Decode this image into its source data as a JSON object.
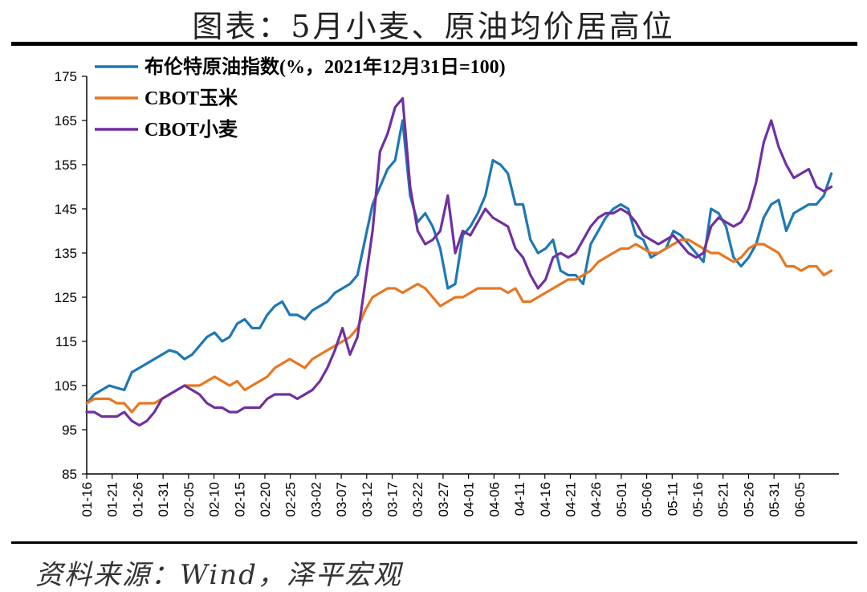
{
  "title": "图表：5月小麦、原油均价居高位",
  "source": "资料来源：Wind，泽平宏观",
  "chart_data": {
    "type": "line",
    "ylim": [
      85,
      175
    ],
    "yticks": [
      "175",
      "165",
      "155",
      "145",
      "135",
      "125",
      "115",
      "105",
      "95",
      "85"
    ],
    "xticks": [
      "01-16",
      "01-21",
      "01-26",
      "01-31",
      "02-05",
      "02-10",
      "02-15",
      "02-20",
      "02-25",
      "03-02",
      "03-07",
      "03-12",
      "03-17",
      "03-22",
      "03-27",
      "04-01",
      "04-06",
      "04-11",
      "04-16",
      "04-21",
      "04-26",
      "05-01",
      "05-06",
      "05-11",
      "05-16",
      "05-21",
      "05-26",
      "05-31",
      "06-05"
    ],
    "legend_position": "top-left",
    "series": [
      {
        "name": "布伦特原油指数(%，2021年12月31日=100)",
        "color": "#1f77b4",
        "points": [
          [
            0,
            101
          ],
          [
            1,
            103
          ],
          [
            2,
            104
          ],
          [
            3,
            105
          ],
          [
            4,
            104.5
          ],
          [
            5,
            104
          ],
          [
            6,
            108
          ],
          [
            7,
            109
          ],
          [
            8,
            110
          ],
          [
            9,
            111
          ],
          [
            10,
            112
          ],
          [
            11,
            113
          ],
          [
            12,
            112.5
          ],
          [
            13,
            111
          ],
          [
            14,
            112
          ],
          [
            15,
            114
          ],
          [
            16,
            116
          ],
          [
            17,
            117
          ],
          [
            18,
            115
          ],
          [
            19,
            116
          ],
          [
            20,
            119
          ],
          [
            21,
            120
          ],
          [
            22,
            118
          ],
          [
            23,
            118
          ],
          [
            24,
            121
          ],
          [
            25,
            123
          ],
          [
            26,
            124
          ],
          [
            27,
            121
          ],
          [
            28,
            121
          ],
          [
            29,
            120
          ],
          [
            30,
            122
          ],
          [
            31,
            123
          ],
          [
            32,
            124
          ],
          [
            33,
            126
          ],
          [
            34,
            127
          ],
          [
            35,
            128
          ],
          [
            36,
            130
          ],
          [
            37,
            138
          ],
          [
            38,
            146
          ],
          [
            39,
            150
          ],
          [
            40,
            154
          ],
          [
            41,
            156
          ],
          [
            42,
            165
          ],
          [
            43,
            148
          ],
          [
            44,
            142
          ],
          [
            45,
            144
          ],
          [
            46,
            141
          ],
          [
            47,
            136
          ],
          [
            48,
            127
          ],
          [
            49,
            128
          ],
          [
            50,
            139
          ],
          [
            51,
            141
          ],
          [
            52,
            144
          ],
          [
            53,
            148
          ],
          [
            54,
            156
          ],
          [
            55,
            155
          ],
          [
            56,
            153
          ],
          [
            57,
            146
          ],
          [
            58,
            146
          ],
          [
            59,
            138
          ],
          [
            60,
            135
          ],
          [
            61,
            136
          ],
          [
            62,
            138
          ],
          [
            63,
            131
          ],
          [
            64,
            130
          ],
          [
            65,
            130
          ],
          [
            66,
            128
          ],
          [
            67,
            137
          ],
          [
            68,
            140
          ],
          [
            69,
            143
          ],
          [
            70,
            145
          ],
          [
            71,
            146
          ],
          [
            72,
            145
          ],
          [
            73,
            139
          ],
          [
            74,
            138
          ],
          [
            75,
            134
          ],
          [
            76,
            135
          ],
          [
            77,
            136
          ],
          [
            78,
            140
          ],
          [
            79,
            139
          ],
          [
            80,
            137
          ],
          [
            81,
            135
          ],
          [
            82,
            133
          ],
          [
            83,
            145
          ],
          [
            84,
            144
          ],
          [
            85,
            141
          ],
          [
            86,
            134
          ],
          [
            87,
            132
          ],
          [
            88,
            134
          ],
          [
            89,
            137
          ],
          [
            90,
            143
          ],
          [
            91,
            146
          ],
          [
            92,
            147
          ],
          [
            93,
            140
          ],
          [
            94,
            144
          ],
          [
            95,
            145
          ],
          [
            96,
            146
          ],
          [
            97,
            146
          ],
          [
            98,
            148
          ],
          [
            99,
            153
          ]
        ]
      },
      {
        "name": "CBOT玉米",
        "color": "#e87722",
        "points": [
          [
            0,
            101
          ],
          [
            1,
            102
          ],
          [
            2,
            102
          ],
          [
            3,
            102
          ],
          [
            4,
            101
          ],
          [
            5,
            101
          ],
          [
            6,
            99
          ],
          [
            7,
            101
          ],
          [
            8,
            101
          ],
          [
            9,
            101
          ],
          [
            10,
            102
          ],
          [
            11,
            103
          ],
          [
            12,
            104
          ],
          [
            13,
            105
          ],
          [
            14,
            105
          ],
          [
            15,
            105
          ],
          [
            16,
            106
          ],
          [
            17,
            107
          ],
          [
            18,
            106
          ],
          [
            19,
            105
          ],
          [
            20,
            106
          ],
          [
            21,
            104
          ],
          [
            22,
            105
          ],
          [
            23,
            106
          ],
          [
            24,
            107
          ],
          [
            25,
            109
          ],
          [
            26,
            110
          ],
          [
            27,
            111
          ],
          [
            28,
            110
          ],
          [
            29,
            109
          ],
          [
            30,
            111
          ],
          [
            31,
            112
          ],
          [
            32,
            113
          ],
          [
            33,
            114
          ],
          [
            34,
            115
          ],
          [
            35,
            116
          ],
          [
            36,
            118
          ],
          [
            37,
            122
          ],
          [
            38,
            125
          ],
          [
            39,
            126
          ],
          [
            40,
            127
          ],
          [
            41,
            127
          ],
          [
            42,
            126
          ],
          [
            43,
            127
          ],
          [
            44,
            128
          ],
          [
            45,
            127
          ],
          [
            46,
            125
          ],
          [
            47,
            123
          ],
          [
            48,
            124
          ],
          [
            49,
            125
          ],
          [
            50,
            125
          ],
          [
            51,
            126
          ],
          [
            52,
            127
          ],
          [
            53,
            127
          ],
          [
            54,
            127
          ],
          [
            55,
            127
          ],
          [
            56,
            126
          ],
          [
            57,
            127
          ],
          [
            58,
            124
          ],
          [
            59,
            124
          ],
          [
            60,
            125
          ],
          [
            61,
            126
          ],
          [
            62,
            127
          ],
          [
            63,
            128
          ],
          [
            64,
            129
          ],
          [
            65,
            129
          ],
          [
            66,
            130
          ],
          [
            67,
            131
          ],
          [
            68,
            133
          ],
          [
            69,
            134
          ],
          [
            70,
            135
          ],
          [
            71,
            136
          ],
          [
            72,
            136
          ],
          [
            73,
            137
          ],
          [
            74,
            136
          ],
          [
            75,
            135
          ],
          [
            76,
            135
          ],
          [
            77,
            136
          ],
          [
            78,
            137
          ],
          [
            79,
            138
          ],
          [
            80,
            138
          ],
          [
            81,
            137
          ],
          [
            82,
            136
          ],
          [
            83,
            135
          ],
          [
            84,
            135
          ],
          [
            85,
            134
          ],
          [
            86,
            133
          ],
          [
            87,
            134
          ],
          [
            88,
            136
          ],
          [
            89,
            137
          ],
          [
            90,
            137
          ],
          [
            91,
            136
          ],
          [
            92,
            135
          ],
          [
            93,
            132
          ],
          [
            94,
            132
          ],
          [
            95,
            131
          ],
          [
            96,
            132
          ],
          [
            97,
            132
          ],
          [
            98,
            130
          ],
          [
            99,
            131
          ]
        ]
      },
      {
        "name": "CBOT小麦",
        "color": "#7030a0",
        "points": [
          [
            0,
            99
          ],
          [
            1,
            99
          ],
          [
            2,
            98
          ],
          [
            3,
            98
          ],
          [
            4,
            98
          ],
          [
            5,
            99
          ],
          [
            6,
            97
          ],
          [
            7,
            96
          ],
          [
            8,
            97
          ],
          [
            9,
            99
          ],
          [
            10,
            102
          ],
          [
            11,
            103
          ],
          [
            12,
            104
          ],
          [
            13,
            105
          ],
          [
            14,
            104
          ],
          [
            15,
            103
          ],
          [
            16,
            101
          ],
          [
            17,
            100
          ],
          [
            18,
            100
          ],
          [
            19,
            99
          ],
          [
            20,
            99
          ],
          [
            21,
            100
          ],
          [
            22,
            100
          ],
          [
            23,
            100
          ],
          [
            24,
            102
          ],
          [
            25,
            103
          ],
          [
            26,
            103
          ],
          [
            27,
            103
          ],
          [
            28,
            102
          ],
          [
            29,
            103
          ],
          [
            30,
            104
          ],
          [
            31,
            106
          ],
          [
            32,
            109
          ],
          [
            33,
            113
          ],
          [
            34,
            118
          ],
          [
            35,
            112
          ],
          [
            36,
            116
          ],
          [
            37,
            128
          ],
          [
            38,
            140
          ],
          [
            39,
            158
          ],
          [
            40,
            162
          ],
          [
            41,
            168
          ],
          [
            42,
            170
          ],
          [
            43,
            150
          ],
          [
            44,
            140
          ],
          [
            45,
            137
          ],
          [
            46,
            138
          ],
          [
            47,
            140
          ],
          [
            48,
            148
          ],
          [
            49,
            135
          ],
          [
            50,
            140
          ],
          [
            51,
            139
          ],
          [
            52,
            142
          ],
          [
            53,
            145
          ],
          [
            54,
            143
          ],
          [
            55,
            142
          ],
          [
            56,
            141
          ],
          [
            57,
            136
          ],
          [
            58,
            134
          ],
          [
            59,
            130
          ],
          [
            60,
            127
          ],
          [
            61,
            129
          ],
          [
            62,
            134
          ],
          [
            63,
            135
          ],
          [
            64,
            134
          ],
          [
            65,
            135
          ],
          [
            66,
            138
          ],
          [
            67,
            141
          ],
          [
            68,
            143
          ],
          [
            69,
            144
          ],
          [
            70,
            144
          ],
          [
            71,
            145
          ],
          [
            72,
            144
          ],
          [
            73,
            142
          ],
          [
            74,
            139
          ],
          [
            75,
            138
          ],
          [
            76,
            137
          ],
          [
            77,
            138
          ],
          [
            78,
            139
          ],
          [
            79,
            137
          ],
          [
            80,
            135
          ],
          [
            81,
            134
          ],
          [
            82,
            135
          ],
          [
            83,
            141
          ],
          [
            84,
            143
          ],
          [
            85,
            142
          ],
          [
            86,
            141
          ],
          [
            87,
            142
          ],
          [
            88,
            145
          ],
          [
            89,
            151
          ],
          [
            90,
            160
          ],
          [
            91,
            165
          ],
          [
            92,
            159
          ],
          [
            93,
            155
          ],
          [
            94,
            152
          ],
          [
            95,
            153
          ],
          [
            96,
            154
          ],
          [
            97,
            150
          ],
          [
            98,
            149
          ],
          [
            99,
            150
          ]
        ]
      }
    ]
  }
}
